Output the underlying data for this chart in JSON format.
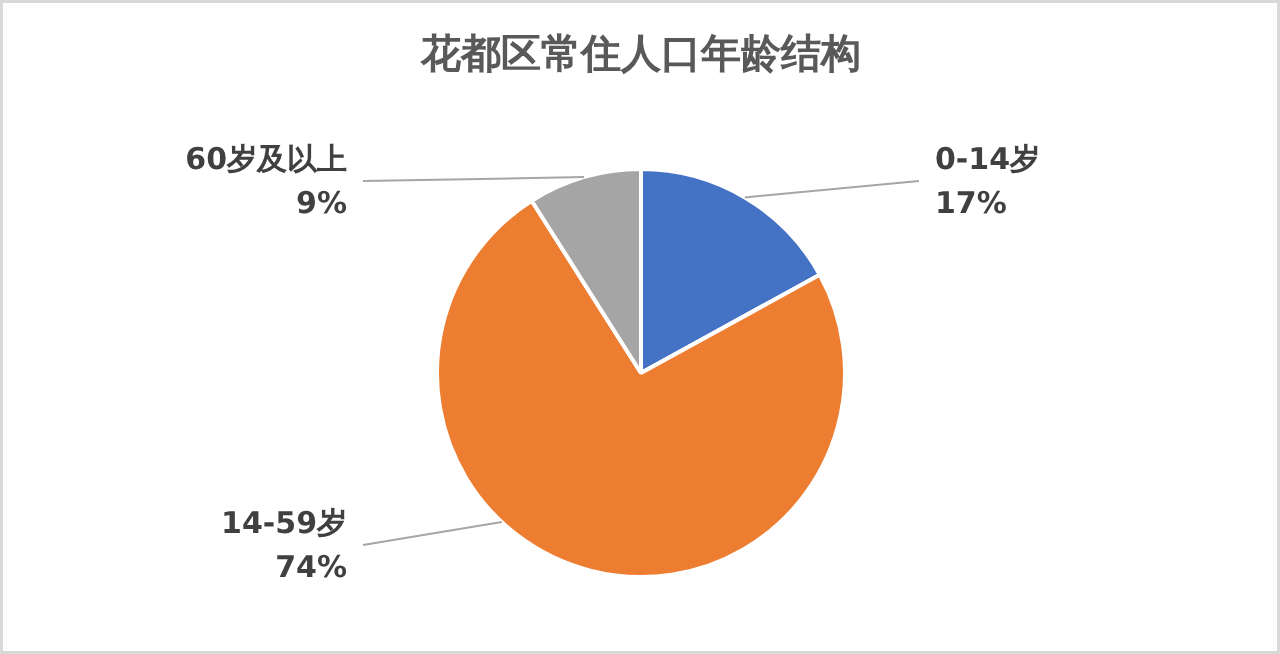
{
  "chart_data": {
    "type": "pie",
    "title": "花都区常住人口年龄结构",
    "categories": [
      "0-14岁",
      "14-59岁",
      "60岁及以上"
    ],
    "values": [
      17,
      74,
      9
    ],
    "value_labels": [
      "17%",
      "74%",
      "9%"
    ],
    "colors": [
      "#4472c4",
      "#ed7d31",
      "#a5a5a5"
    ]
  }
}
